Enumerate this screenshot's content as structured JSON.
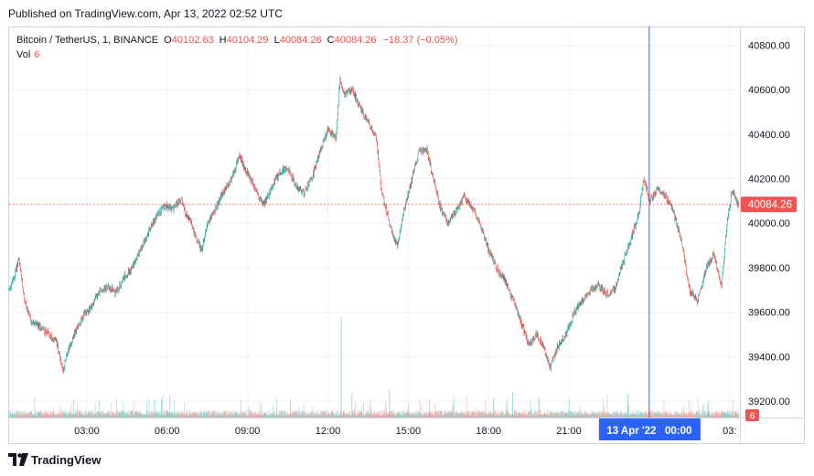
{
  "header": {
    "published": "Published on TradingView.com, Apr 13, 2022 02:52 UTC"
  },
  "legend": {
    "symbol": "Bitcoin / TetherUS, 1, BINANCE",
    "open_label": "O",
    "open": "40102.63",
    "high_label": "H",
    "high": "40104.29",
    "low_label": "L",
    "low": "40084.26",
    "close_label": "C",
    "close": "40084.26",
    "change": "−18.37 (−0.05%)",
    "vol_label": "Vol",
    "vol": "6"
  },
  "footer": {
    "brand": "TradingView"
  },
  "colors": {
    "up": "#26a69a",
    "down": "#ef5350",
    "crosshair": "#2962ff",
    "grid": "#f0f3fa",
    "price_line": "#ef5350"
  },
  "chart_data": {
    "type": "candlestick",
    "y_ticks": [
      "40800.00",
      "40600.00",
      "40400.00",
      "40200.00",
      "40000.00",
      "39800.00",
      "39600.00",
      "39400.00",
      "39200.00"
    ],
    "y_tick_values": [
      40800,
      40600,
      40400,
      40200,
      40000,
      39800,
      39600,
      39400,
      39200
    ],
    "ylim": [
      39130,
      40880
    ],
    "x_ticks": [
      "03:00",
      "06:00",
      "09:00",
      "12:00",
      "15:00",
      "18:00",
      "21:00",
      "03:"
    ],
    "x_tick_hours": [
      3,
      6,
      9,
      12,
      15,
      18,
      21,
      27
    ],
    "x_range_hours": [
      0.1,
      27.35
    ],
    "crosshair": {
      "label": "13 Apr '22   00:00",
      "hour": 24
    },
    "last_price": {
      "label": "40084.26",
      "value": 40084.26
    },
    "volume_badge": "6",
    "grid": true,
    "price_path": [
      [
        0.1,
        39700
      ],
      [
        0.3,
        39760
      ],
      [
        0.45,
        39840
      ],
      [
        0.7,
        39640
      ],
      [
        0.9,
        39560
      ],
      [
        1.1,
        39540
      ],
      [
        1.3,
        39530
      ],
      [
        1.6,
        39500
      ],
      [
        1.9,
        39460
      ],
      [
        2.1,
        39330
      ],
      [
        2.3,
        39430
      ],
      [
        2.6,
        39520
      ],
      [
        2.9,
        39590
      ],
      [
        3.2,
        39630
      ],
      [
        3.5,
        39700
      ],
      [
        3.8,
        39710
      ],
      [
        4.1,
        39690
      ],
      [
        4.4,
        39760
      ],
      [
        4.7,
        39800
      ],
      [
        5.0,
        39880
      ],
      [
        5.3,
        39960
      ],
      [
        5.6,
        40030
      ],
      [
        5.9,
        40080
      ],
      [
        6.2,
        40060
      ],
      [
        6.5,
        40110
      ],
      [
        6.7,
        40040
      ],
      [
        6.9,
        40000
      ],
      [
        7.1,
        39920
      ],
      [
        7.3,
        39880
      ],
      [
        7.5,
        40000
      ],
      [
        7.8,
        40060
      ],
      [
        8.1,
        40140
      ],
      [
        8.4,
        40200
      ],
      [
        8.7,
        40300
      ],
      [
        9.0,
        40220
      ],
      [
        9.3,
        40150
      ],
      [
        9.6,
        40080
      ],
      [
        9.9,
        40160
      ],
      [
        10.2,
        40230
      ],
      [
        10.5,
        40250
      ],
      [
        10.8,
        40170
      ],
      [
        11.1,
        40130
      ],
      [
        11.4,
        40200
      ],
      [
        11.7,
        40320
      ],
      [
        12.0,
        40420
      ],
      [
        12.3,
        40380
      ],
      [
        12.45,
        40650
      ],
      [
        12.6,
        40580
      ],
      [
        12.9,
        40600
      ],
      [
        13.2,
        40520
      ],
      [
        13.5,
        40450
      ],
      [
        13.8,
        40390
      ],
      [
        14.0,
        40150
      ],
      [
        14.2,
        40050
      ],
      [
        14.4,
        39960
      ],
      [
        14.6,
        39900
      ],
      [
        14.8,
        40040
      ],
      [
        15.1,
        40180
      ],
      [
        15.4,
        40320
      ],
      [
        15.7,
        40330
      ],
      [
        15.9,
        40220
      ],
      [
        16.2,
        40070
      ],
      [
        16.5,
        40000
      ],
      [
        16.8,
        40060
      ],
      [
        17.1,
        40120
      ],
      [
        17.4,
        40070
      ],
      [
        17.7,
        39990
      ],
      [
        18.0,
        39880
      ],
      [
        18.3,
        39800
      ],
      [
        18.6,
        39740
      ],
      [
        18.9,
        39660
      ],
      [
        19.2,
        39560
      ],
      [
        19.5,
        39450
      ],
      [
        19.8,
        39500
      ],
      [
        20.1,
        39430
      ],
      [
        20.3,
        39350
      ],
      [
        20.6,
        39450
      ],
      [
        20.9,
        39500
      ],
      [
        21.2,
        39600
      ],
      [
        21.5,
        39650
      ],
      [
        21.8,
        39700
      ],
      [
        22.1,
        39720
      ],
      [
        22.4,
        39680
      ],
      [
        22.7,
        39700
      ],
      [
        23.0,
        39820
      ],
      [
        23.3,
        39920
      ],
      [
        23.6,
        40040
      ],
      [
        23.8,
        40200
      ],
      [
        24.0,
        40100
      ],
      [
        24.3,
        40150
      ],
      [
        24.6,
        40120
      ],
      [
        24.9,
        40050
      ],
      [
        25.2,
        39920
      ],
      [
        25.5,
        39700
      ],
      [
        25.8,
        39650
      ],
      [
        26.1,
        39790
      ],
      [
        26.4,
        39860
      ],
      [
        26.7,
        39720
      ],
      [
        26.9,
        40000
      ],
      [
        27.1,
        40150
      ],
      [
        27.3,
        40084
      ]
    ],
    "volume_spikes": [
      [
        12.5,
        0.55
      ],
      [
        14.3,
        0.15
      ],
      [
        6.1,
        0.12
      ],
      [
        18.9,
        0.14
      ],
      [
        23.2,
        0.13
      ],
      [
        2.5,
        0.1
      ],
      [
        10.6,
        0.1
      ],
      [
        15.8,
        0.1
      ],
      [
        12.9,
        0.13
      ],
      [
        26.2,
        0.09
      ]
    ]
  }
}
